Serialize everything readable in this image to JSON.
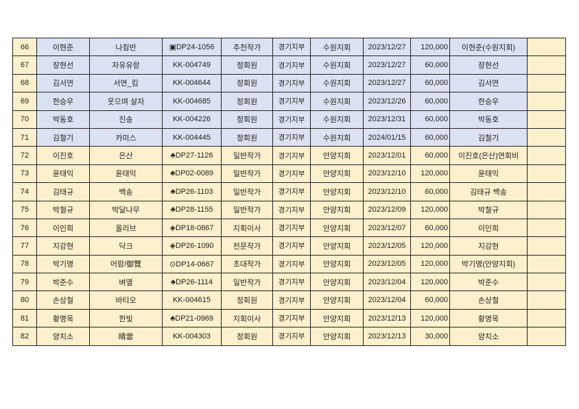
{
  "colors": {
    "suwon_row": "#dbe2f3",
    "anyang_row": "#fdf0cc",
    "border": "#222222"
  },
  "rows": [
    {
      "no": "66",
      "name": "이현준",
      "pen": "나침반",
      "id": "▣DP24-1056",
      "grade": "추천작가",
      "dept": "경기지부",
      "branch": "수원지회",
      "date": "2023/12/27",
      "amount": "120,000",
      "payer": "이현준(수원지회)",
      "note": "",
      "group": "suwon"
    },
    {
      "no": "67",
      "name": "장현선",
      "pen": "자유유랑",
      "id": "KK-004749",
      "grade": "정회원",
      "dept": "경기지부",
      "branch": "수원지회",
      "date": "2023/12/27",
      "amount": "60,000",
      "payer": "장현선",
      "note": "",
      "group": "suwon"
    },
    {
      "no": "68",
      "name": "김서연",
      "pen": "서연_킴",
      "id": "KK-004644",
      "grade": "정회원",
      "dept": "경기지부",
      "branch": "수원지회",
      "date": "2023/12/27",
      "amount": "60,000",
      "payer": "김서연",
      "note": "",
      "group": "suwon"
    },
    {
      "no": "69",
      "name": "한승우",
      "pen": "웃으며 살자",
      "id": "KK-004685",
      "grade": "정회원",
      "dept": "경기지부",
      "branch": "수원지회",
      "date": "2023/12/26",
      "amount": "60,000",
      "payer": "한승우",
      "note": "",
      "group": "suwon"
    },
    {
      "no": "70",
      "name": "박동호",
      "pen": "진송",
      "id": "KK-004226",
      "grade": "정회원",
      "dept": "경기지부",
      "branch": "수원지회",
      "date": "2023/12/31",
      "amount": "60,000",
      "payer": "박동호",
      "note": "",
      "group": "suwon"
    },
    {
      "no": "71",
      "name": "김철기",
      "pen": "카미스",
      "id": "KK-004445",
      "grade": "정회원",
      "dept": "경기지부",
      "branch": "수원지회",
      "date": "2024/01/15",
      "amount": "60,000",
      "payer": "김철기",
      "note": "",
      "group": "suwon"
    },
    {
      "no": "72",
      "name": "이진호",
      "pen": "은산",
      "id": "♣DP27-1126",
      "grade": "일반작가",
      "dept": "경기지부",
      "branch": "안양지회",
      "date": "2023/12/01",
      "amount": "60,000",
      "payer": "이진호(은산)연회비",
      "note": "",
      "group": "anyang"
    },
    {
      "no": "73",
      "name": "윤태익",
      "pen": "윤태익",
      "id": "♣DP02-0089",
      "grade": "일반작가",
      "dept": "경기지부",
      "branch": "안양지회",
      "date": "2023/12/10",
      "amount": "120,000",
      "payer": "윤태익",
      "note": "",
      "group": "anyang"
    },
    {
      "no": "74",
      "name": "김태규",
      "pen": "백송",
      "id": "♣DP26-1103",
      "grade": "일반작가",
      "dept": "경기지부",
      "branch": "안양지회",
      "date": "2023/12/10",
      "amount": "60,000",
      "payer": "김태규 백송",
      "note": "",
      "group": "anyang"
    },
    {
      "no": "75",
      "name": "박철규",
      "pen": "박달나무",
      "id": "♣DP28-1155",
      "grade": "일반작가",
      "dept": "경기지부",
      "branch": "안양지회",
      "date": "2023/12/09",
      "amount": "120,000",
      "payer": "박철규",
      "note": "",
      "group": "anyang"
    },
    {
      "no": "76",
      "name": "이인희",
      "pen": "올리브",
      "id": "◈DP18-0867",
      "grade": "지회이사",
      "dept": "경기지부",
      "branch": "안양지회",
      "date": "2023/12/07",
      "amount": "60,000",
      "payer": "이인희",
      "note": "",
      "group": "anyang"
    },
    {
      "no": "77",
      "name": "지강현",
      "pen": "닥크",
      "id": "◈DP26-1090",
      "grade": "전문작가",
      "dept": "경기지부",
      "branch": "안양지회",
      "date": "2023/12/05",
      "amount": "120,000",
      "payer": "지강현",
      "note": "",
      "group": "anyang"
    },
    {
      "no": "78",
      "name": "박기명",
      "pen": "어람/御覽",
      "id": "⊙DP14-0667",
      "grade": "초대작가",
      "dept": "경기지부",
      "branch": "안양지회",
      "date": "2023/12/05",
      "amount": "120,000",
      "payer": "박기명(안양지회)",
      "note": "",
      "group": "anyang"
    },
    {
      "no": "79",
      "name": "박준수",
      "pen": "벼열",
      "id": "♣DP26-1114",
      "grade": "일반작가",
      "dept": "경기지부",
      "branch": "안양지회",
      "date": "2023/12/04",
      "amount": "120,000",
      "payer": "박준수",
      "note": "",
      "group": "anyang"
    },
    {
      "no": "80",
      "name": "손상철",
      "pen": "바티오",
      "id": "KK-004615",
      "grade": "정회원",
      "dept": "경기지부",
      "branch": "안양지회",
      "date": "2023/12/04",
      "amount": "60,000",
      "payer": "손상철",
      "note": "",
      "group": "anyang"
    },
    {
      "no": "81",
      "name": "황명옥",
      "pen": "한빛",
      "id": "♣DP21-0969",
      "grade": "지회이사",
      "dept": "경기지부",
      "branch": "안양지회",
      "date": "2023/12/13",
      "amount": "120,000",
      "payer": "황명옥",
      "note": "",
      "group": "anyang"
    },
    {
      "no": "82",
      "name": "양치소",
      "pen": "晴雲",
      "id": "KK-004303",
      "grade": "정회원",
      "dept": "경기지부",
      "branch": "안양지회",
      "date": "2023/12/13",
      "amount": "30,000",
      "payer": "양치소",
      "note": "",
      "group": "anyang"
    }
  ]
}
